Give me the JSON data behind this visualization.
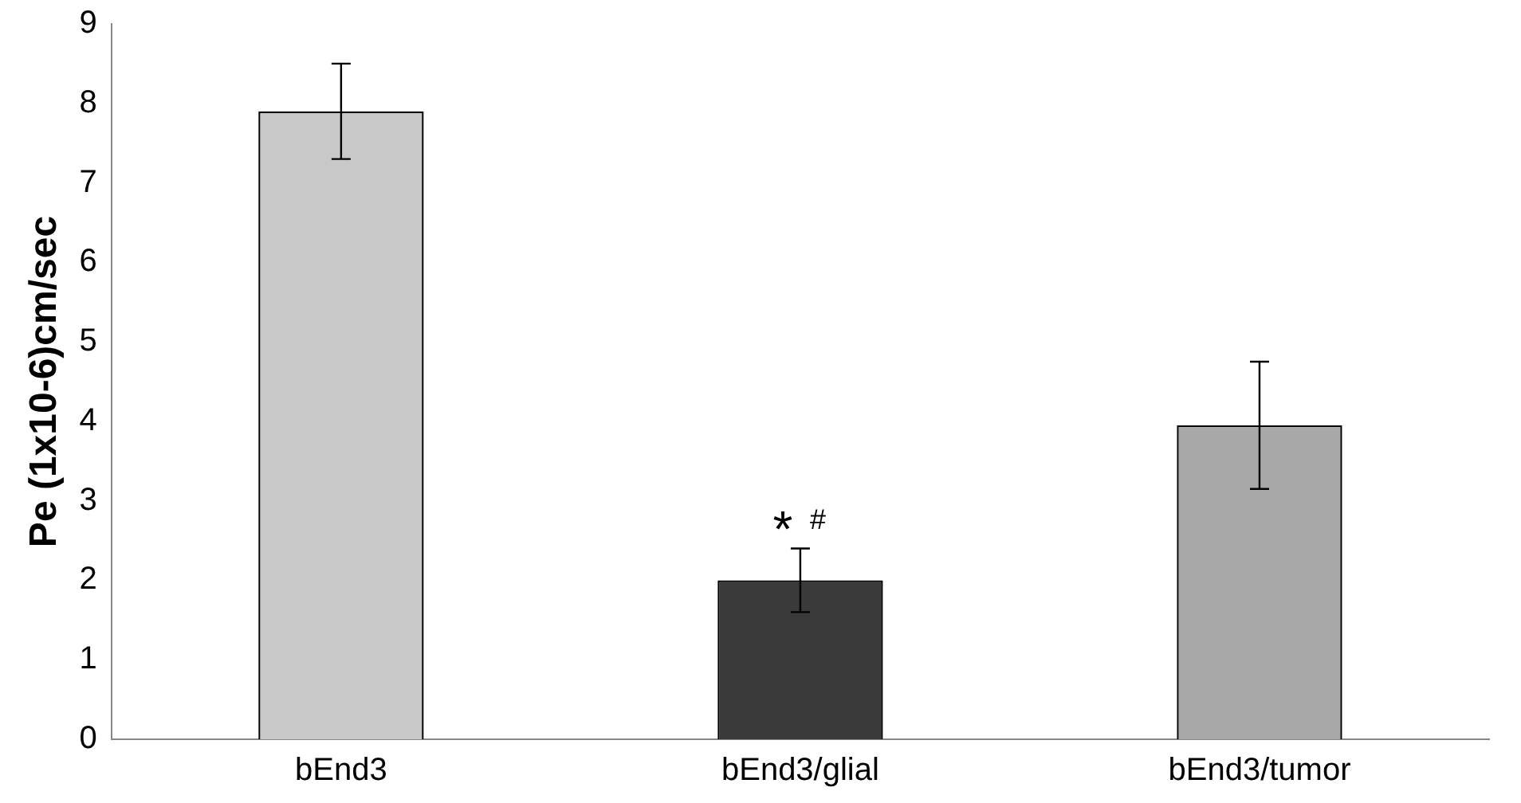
{
  "chart_data": {
    "type": "bar",
    "ylabel": "Pe (1x10-6)cm/sec",
    "categories": [
      "bEnd3",
      "bEnd3/glial",
      "bEnd3/tumor"
    ],
    "values": [
      7.9,
      2.0,
      3.95
    ],
    "errors": [
      0.6,
      0.4,
      0.8
    ],
    "colors": [
      "#c8c8c8",
      "#3a3a3a",
      "#a8a8a8"
    ],
    "ylim": [
      0,
      9
    ],
    "yticks": [
      0,
      1,
      2,
      3,
      4,
      5,
      6,
      7,
      8,
      9
    ],
    "grid": false,
    "legend": false,
    "annotations": [
      "*",
      "#"
    ]
  }
}
